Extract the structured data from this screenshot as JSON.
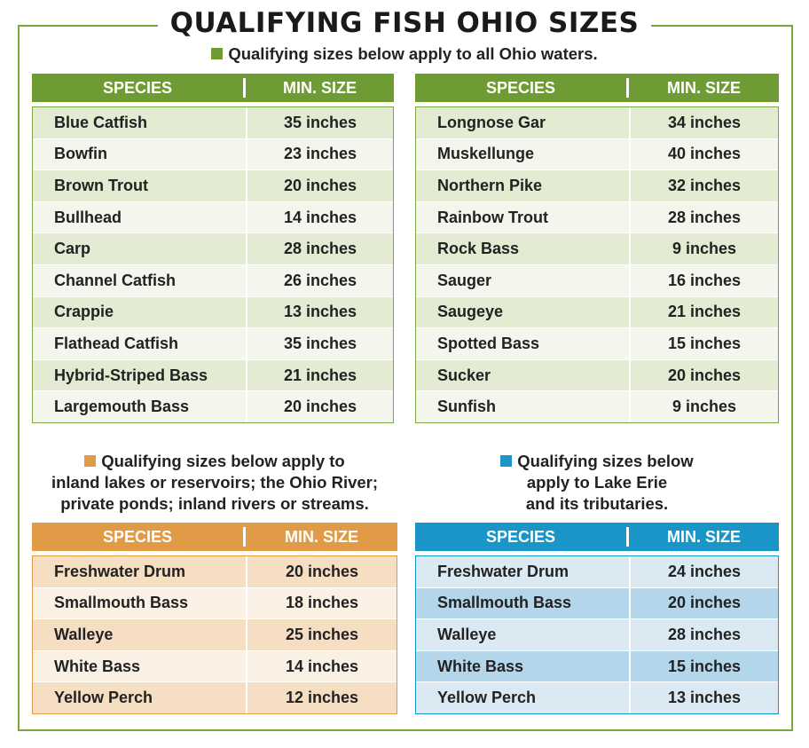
{
  "title": "QUALIFYING FISH OHIO SIZES",
  "colors": {
    "green": "#6f9b35",
    "orange": "#e19a45",
    "blue": "#1995c8"
  },
  "notes": {
    "all": "Qualifying sizes below apply to all Ohio waters.",
    "orange": [
      "Qualifying sizes below apply to",
      "inland lakes or reservoirs; the Ohio River;",
      "private ponds; inland rivers or streams."
    ],
    "blue": [
      "Qualifying sizes below",
      "apply to Lake Erie",
      "and its tributaries."
    ]
  },
  "headers": {
    "species": "SPECIES",
    "size": "MIN. SIZE"
  },
  "tables": {
    "left": [
      {
        "species": "Blue Catfish",
        "size": "35 inches"
      },
      {
        "species": "Bowfin",
        "size": "23 inches"
      },
      {
        "species": "Brown Trout",
        "size": "20 inches"
      },
      {
        "species": "Bullhead",
        "size": "14 inches"
      },
      {
        "species": "Carp",
        "size": "28 inches"
      },
      {
        "species": "Channel Catfish",
        "size": "26 inches"
      },
      {
        "species": "Crappie",
        "size": "13 inches"
      },
      {
        "species": "Flathead Catfish",
        "size": "35 inches"
      },
      {
        "species": "Hybrid-Striped Bass",
        "size": "21 inches"
      },
      {
        "species": "Largemouth Bass",
        "size": "20 inches"
      }
    ],
    "right": [
      {
        "species": "Longnose Gar",
        "size": "34 inches"
      },
      {
        "species": "Muskellunge",
        "size": "40 inches"
      },
      {
        "species": "Northern Pike",
        "size": "32 inches"
      },
      {
        "species": "Rainbow Trout",
        "size": "28 inches"
      },
      {
        "species": "Rock Bass",
        "size": "9 inches"
      },
      {
        "species": "Sauger",
        "size": "16 inches"
      },
      {
        "species": "Saugeye",
        "size": "21 inches"
      },
      {
        "species": "Spotted Bass",
        "size": "15 inches"
      },
      {
        "species": "Sucker",
        "size": "20 inches"
      },
      {
        "species": "Sunfish",
        "size": "9 inches"
      }
    ],
    "orange": [
      {
        "species": "Freshwater Drum",
        "size": "20 inches"
      },
      {
        "species": "Smallmouth Bass",
        "size": "18 inches"
      },
      {
        "species": "Walleye",
        "size": "25 inches"
      },
      {
        "species": "White Bass",
        "size": "14 inches"
      },
      {
        "species": "Yellow Perch",
        "size": "12 inches"
      }
    ],
    "blue": [
      {
        "species": "Freshwater Drum",
        "size": "24 inches"
      },
      {
        "species": "Smallmouth Bass",
        "size": "20 inches"
      },
      {
        "species": "Walleye",
        "size": "28 inches"
      },
      {
        "species": "White Bass",
        "size": "15 inches"
      },
      {
        "species": "Yellow Perch",
        "size": "13 inches"
      }
    ]
  }
}
